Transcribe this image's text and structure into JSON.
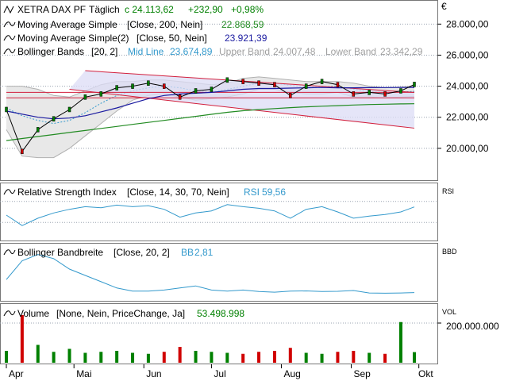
{
  "colors": {
    "up": "#008000",
    "down": "#d00000",
    "ma200": "#228B22",
    "ma50": "#1a1aa0",
    "bollinger_mid": "#3399cc",
    "bollinger_band": "#b0b0b0",
    "bollinger_fill": "#e8e8e8",
    "channel_fill": "#dcdcf5",
    "trend_red": "#d21f3c",
    "rsi_line": "#3399cc",
    "bbw_line": "#3399cc",
    "grid": "#9aa3b0"
  },
  "header": {
    "symbol": "XETRA DAX PF",
    "interval": "Täglich",
    "close_text": "c 24.113,62",
    "change_text": "+232,90",
    "change_pct_text": "+0,98%"
  },
  "legend": {
    "ma200_label": "Moving Average Simple",
    "ma200_params": "[Close, 200, Nein]",
    "ma200_value": "22.868,59",
    "ma50_label": "Moving Average Simple(2)",
    "ma50_params": "[Close, 50, Nein]",
    "ma50_value": "23.921,39",
    "bb_label": "Bollinger Bands",
    "bb_params": "[20, 2]",
    "bb_mid_label": "Mid Line",
    "bb_mid_value": "23.674,89",
    "bb_upper_label": "Upper Band",
    "bb_upper_value": "24.007,48",
    "bb_lower_label": "Lower Band",
    "bb_lower_value": "23.342,29"
  },
  "rsi_panel": {
    "label": "Relative Strength Index",
    "params": "[Close, 14, 30, 70, Nein]",
    "value_label": "RSI",
    "value": "59,56",
    "axis_label": "RSI"
  },
  "bbw_panel": {
    "label": "Bollinger Bandbreite",
    "params": "[Close, 20, 2]",
    "value_label": "BB",
    "value": "2,81",
    "axis_label": "BBD"
  },
  "volume_panel": {
    "label": "Volume",
    "params": "[None, Nein, PriceChange, Ja]",
    "value": "53.498.998",
    "axis_label": "VOL",
    "tick": "200.000.000"
  },
  "price_axis": {
    "currency": "€",
    "ticks": [
      "28.000,00",
      "26.000,00",
      "24.000,00",
      "22.000,00",
      "20.000,00"
    ]
  },
  "x_axis": {
    "months": [
      "Apr",
      "Mai",
      "Jun",
      "Jul",
      "Aug",
      "Sep",
      "Okt"
    ]
  },
  "chart_data": [
    {
      "type": "line",
      "title": "XETRA DAX PF",
      "subtitle": "Täglich",
      "x": [
        "2025-04-01",
        "2025-04-08",
        "2025-04-15",
        "2025-04-22",
        "2025-04-29",
        "2025-05-06",
        "2025-05-13",
        "2025-05-20",
        "2025-05-27",
        "2025-06-03",
        "2025-06-10",
        "2025-06-17",
        "2025-06-24",
        "2025-07-01",
        "2025-07-08",
        "2025-07-15",
        "2025-07-22",
        "2025-07-29",
        "2025-08-05",
        "2025-08-12",
        "2025-08-19",
        "2025-08-26",
        "2025-09-02",
        "2025-09-09",
        "2025-09-16",
        "2025-09-23",
        "2025-09-29"
      ],
      "series": [
        {
          "name": "XETRA DAX PF",
          "values": [
            22500,
            19800,
            21200,
            21900,
            22500,
            23300,
            23500,
            23900,
            24000,
            24200,
            24000,
            23300,
            23700,
            23800,
            24400,
            24300,
            24200,
            24100,
            23400,
            24000,
            24300,
            24100,
            23500,
            23600,
            23500,
            23700,
            24113
          ]
        },
        {
          "name": "Moving Average Simple",
          "values": [
            20500,
            20630,
            20760,
            20890,
            21020,
            21150,
            21280,
            21410,
            21540,
            21670,
            21800,
            21930,
            22060,
            22190,
            22320,
            22420,
            22500,
            22560,
            22620,
            22670,
            22710,
            22750,
            22790,
            22820,
            22840,
            22860,
            22868.59
          ]
        },
        {
          "name": "Moving Average Simple(2)",
          "values": [
            22400,
            22200,
            22000,
            21900,
            21950,
            22100,
            22350,
            22600,
            22900,
            23200,
            23400,
            23500,
            23550,
            23600,
            23700,
            23800,
            23850,
            23850,
            23880,
            23900,
            23920,
            23900,
            23900,
            23910,
            23915,
            23920,
            23921.39
          ]
        },
        {
          "name": "Mid Line",
          "values": [
            22600,
            22100,
            21800,
            21600,
            21800,
            22300,
            22900,
            23400,
            23700,
            23900,
            24000,
            23900,
            23700,
            23650,
            23800,
            24000,
            24200,
            24200,
            24050,
            23950,
            23950,
            24000,
            23800,
            23650,
            23600,
            23620,
            23674.89
          ]
        },
        {
          "name": "Upper Band",
          "values": [
            24000,
            24000,
            23800,
            23400,
            23300,
            23700,
            24100,
            24300,
            24300,
            24400,
            24400,
            24300,
            24200,
            24100,
            24200,
            24500,
            24600,
            24500,
            24400,
            24300,
            24300,
            24300,
            24200,
            24000,
            23900,
            23950,
            24007.48
          ]
        },
        {
          "name": "Lower Band",
          "values": [
            21200,
            19500,
            19400,
            19400,
            20000,
            20800,
            21600,
            22400,
            23100,
            23400,
            23500,
            23300,
            23100,
            23200,
            23300,
            23500,
            23800,
            23800,
            23600,
            23500,
            23500,
            23600,
            23300,
            23300,
            23250,
            23300,
            23342.29
          ]
        }
      ],
      "ylim": [
        18000,
        29500
      ],
      "trendlines": [
        {
          "name": "channel-upper",
          "from": [
            "2025-05-06",
            25000
          ],
          "to": [
            "2025-09-29",
            23600
          ]
        },
        {
          "name": "channel-lower",
          "from": [
            "2025-04-29",
            23800
          ],
          "to": [
            "2025-09-29",
            21300
          ]
        },
        {
          "name": "horizontal-1",
          "from": [
            "2025-04-01",
            23600
          ],
          "to": [
            "2025-09-29",
            23600
          ]
        },
        {
          "name": "horizontal-2",
          "from": [
            "2025-04-01",
            23250
          ],
          "to": [
            "2025-09-29",
            23250
          ]
        }
      ]
    },
    {
      "type": "line",
      "title": "Relative Strength Index",
      "series": [
        {
          "name": "RSI",
          "values": [
            44,
            24,
            38,
            48,
            55,
            60,
            58,
            63,
            60,
            62,
            55,
            40,
            48,
            52,
            64,
            60,
            57,
            52,
            38,
            55,
            60,
            50,
            38,
            42,
            45,
            50,
            59.56
          ]
        }
      ],
      "ylim": [
        0,
        100
      ]
    },
    {
      "type": "line",
      "title": "Bollinger Bandbreite",
      "series": [
        {
          "name": "BB",
          "values": [
            9,
            18,
            21,
            19,
            14,
            11,
            8,
            5,
            3.5,
            3.5,
            4,
            5,
            6,
            4,
            3.5,
            4,
            3.3,
            3,
            3.5,
            3.6,
            3.3,
            3.4,
            3.8,
            2.6,
            2.5,
            2.6,
            2.81
          ]
        }
      ],
      "ylim": [
        0,
        25
      ]
    },
    {
      "type": "bar",
      "title": "Volume",
      "x": [
        "2025-04-01",
        "2025-04-08",
        "2025-04-15",
        "2025-04-22",
        "2025-04-29",
        "2025-05-06",
        "2025-05-13",
        "2025-05-20",
        "2025-05-27",
        "2025-06-03",
        "2025-06-10",
        "2025-06-17",
        "2025-06-24",
        "2025-07-01",
        "2025-07-08",
        "2025-07-15",
        "2025-07-22",
        "2025-07-29",
        "2025-08-05",
        "2025-08-12",
        "2025-08-19",
        "2025-08-26",
        "2025-09-02",
        "2025-09-09",
        "2025-09-16",
        "2025-09-23",
        "2025-09-29"
      ],
      "series": [
        {
          "name": "Volume",
          "values": [
            60000000,
            240000000,
            90000000,
            55000000,
            70000000,
            50000000,
            55000000,
            60000000,
            50000000,
            45000000,
            55000000,
            80000000,
            60000000,
            55000000,
            50000000,
            45000000,
            55000000,
            60000000,
            75000000,
            50000000,
            45000000,
            55000000,
            60000000,
            50000000,
            45000000,
            205000000,
            53498998
          ]
        }
      ],
      "ylim": [
        0,
        280000000
      ]
    }
  ]
}
